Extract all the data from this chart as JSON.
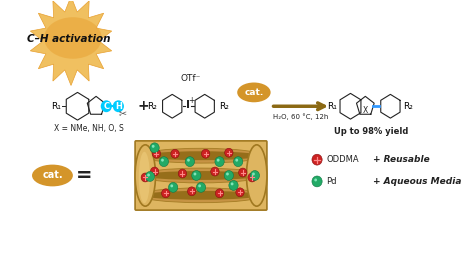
{
  "bg_color": "#ffffff",
  "starburst_color_outer": "#f0c060",
  "starburst_color_inner": "#e8a030",
  "starburst_text": "C–H activation",
  "cat_bubble_color": "#d4952a",
  "arrow_color": "#8B6914",
  "reaction_conditions": "H₂O, 60 °C, 12h",
  "yield_text": "Up to 98% yield",
  "x_label": "X = NMe, NH, O, S",
  "otf_label": "OTf⁻",
  "catalyst_tube_color": "#DEB560",
  "catalyst_tube_shadow": "#C49040",
  "catalyst_tube_dark": "#A07820",
  "catalyst_tube_light": "#F0D080",
  "oddma_color": "#cc2222",
  "pd_color": "#22aa66",
  "pd_outline": "#117744",
  "legend_oddma": "ODDMA",
  "legend_pd": "Pd",
  "legend_reusable": "+ Reusable",
  "legend_aqueous": "+ Aqueous Media",
  "r1_label": "R₁",
  "r2_label": "R₂",
  "cat_label": "cat.",
  "c_atom_color": "#00ccff",
  "h_atom_color": "#00ccff",
  "bond_color": "#3399ff",
  "line_color": "#222222"
}
